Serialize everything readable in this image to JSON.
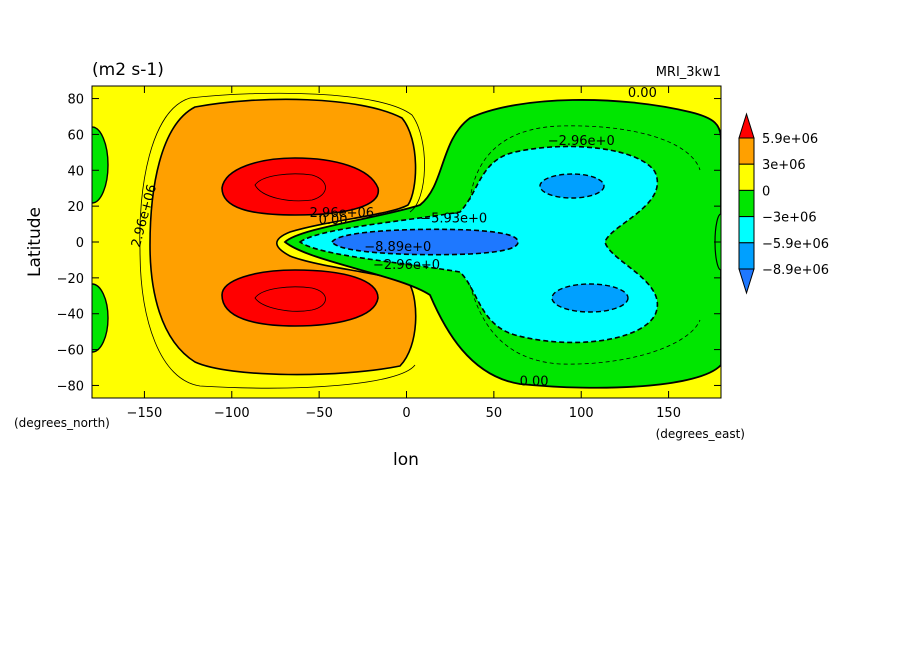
{
  "chart_data": {
    "type": "heatmap",
    "units_label": "(m2 s-1)",
    "model_label": "MRI_3kw1",
    "xlabel": "lon",
    "ylabel": "Latitude",
    "x_units": "(degrees_east)",
    "y_units": "(degrees_north)",
    "xlim": [
      -180,
      180
    ],
    "ylim": [
      -87,
      87
    ],
    "x_ticks": [
      -150,
      -100,
      -50,
      0,
      50,
      100,
      150
    ],
    "x_tick_labels": [
      "−150",
      "−100",
      "−50",
      "0",
      "50",
      "100",
      "150"
    ],
    "y_ticks": [
      80,
      60,
      40,
      20,
      0,
      -20,
      -40,
      -60,
      -80
    ],
    "y_tick_labels": [
      "80",
      "60",
      "40",
      "20",
      "0",
      "−20",
      "−40",
      "−60",
      "−80"
    ],
    "colorbar": {
      "colors": [
        "#1e78ff",
        "#00a0ff",
        "#00ffff",
        "#00e600",
        "#ffff00",
        "#ffa000",
        "#ff0000"
      ],
      "level_labels": [
        "5.9e+06",
        "3e+06",
        "0",
        "−3e+06",
        "−5.9e+06",
        "−8.9e+06"
      ],
      "levels": [
        5900000,
        3000000,
        0,
        -3000000,
        -5900000,
        -8900000
      ]
    },
    "contour_labels": [
      {
        "text": "0.00",
        "lon": 135,
        "lat": 81
      },
      {
        "text": "0.00",
        "lon": 73,
        "lat": -80
      },
      {
        "text": "−2.96e+0",
        "lon": 100,
        "lat": 54
      },
      {
        "text": "2.96e+06",
        "lon": -148,
        "lat": 14,
        "rotate": -75
      },
      {
        "text": "2.96e+06",
        "lon": -37,
        "lat": 14
      },
      {
        "text": "0.00",
        "lon": -42,
        "lat": 10
      },
      {
        "text": "−5.93e+0",
        "lon": 27,
        "lat": 11
      },
      {
        "text": "−8.89e+0",
        "lon": -5,
        "lat": -5
      },
      {
        "text": "−2.96e+0",
        "lon": 0,
        "lat": -15
      }
    ],
    "features": [
      {
        "name": "max_north",
        "lon": -65,
        "lat": 28,
        "approx_value": 7500000
      },
      {
        "name": "max_south",
        "lon": -65,
        "lat": -30,
        "approx_value": 7500000
      },
      {
        "name": "min_equator",
        "lon": 30,
        "lat": 0,
        "approx_value": -10000000
      },
      {
        "name": "min_north_secondary",
        "lon": 100,
        "lat": 30,
        "approx_value": -7000000
      },
      {
        "name": "min_south_secondary",
        "lon": 100,
        "lat": -30,
        "approx_value": -7000000
      }
    ]
  }
}
